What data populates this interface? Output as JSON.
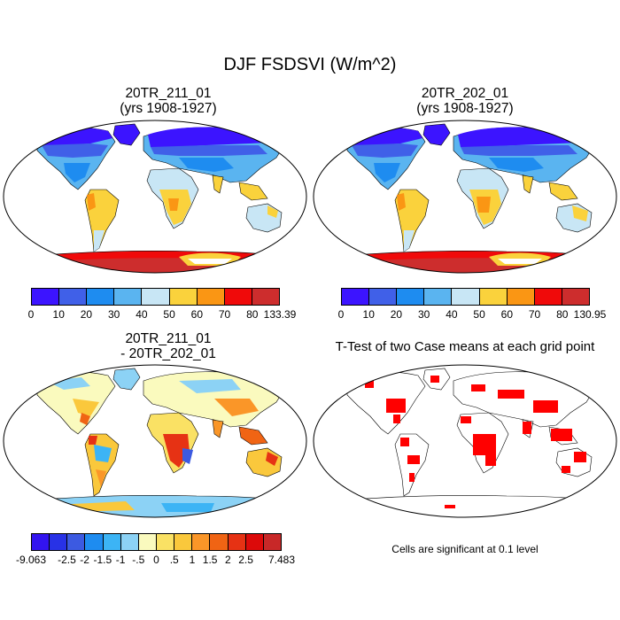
{
  "title": "DJF FSDSVI (W/m^2)",
  "panels": {
    "p1": {
      "title_line1": "20TR_211_01",
      "title_line2": "(yrs 1908-1927)"
    },
    "p2": {
      "title_line1": "20TR_202_01",
      "title_line2": "(yrs 1908-1927)"
    },
    "p3": {
      "title_line1": "20TR_211_01",
      "title_line2": "- 20TR_202_01"
    },
    "p4": {
      "title_line1": "T-Test of two Case means at each grid point"
    }
  },
  "colorbars": {
    "abs": {
      "colors": [
        "#3c14ff",
        "#4060e8",
        "#1e8cf0",
        "#5ab4f0",
        "#c8e6f5",
        "#fad23c",
        "#fa9614",
        "#f00a0a",
        "#cd2d2d"
      ]
    },
    "cb1_labels": [
      "0",
      "10",
      "20",
      "30",
      "40",
      "50",
      "60",
      "70",
      "80",
      "133.39"
    ],
    "cb2_labels": [
      "0",
      "10",
      "20",
      "30",
      "40",
      "50",
      "60",
      "70",
      "80",
      "130.95"
    ],
    "diff": {
      "colors": [
        "#3214f0",
        "#2832e6",
        "#3c5ae1",
        "#1e8cf0",
        "#3cb4f5",
        "#8cd2f5",
        "#fafabe",
        "#fae164",
        "#fac83c",
        "#fa9628",
        "#f06414",
        "#e63214",
        "#dc0a0a",
        "#c82828"
      ],
      "labels": [
        "-9.063",
        "-2.5",
        "-2",
        "-1.5",
        "-1",
        "-.5",
        "0",
        ".5",
        "1",
        "1.5",
        "2",
        "2.5",
        "7.483"
      ]
    }
  },
  "note": "Cells are significant at 0.1 level"
}
